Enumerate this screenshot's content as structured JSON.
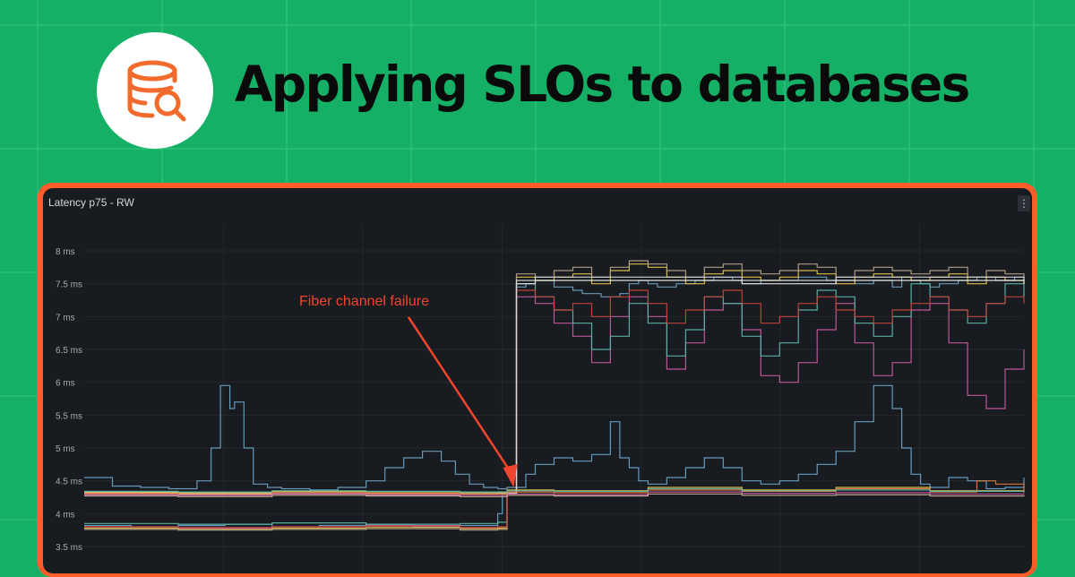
{
  "headline": "Applying SLOs to databases",
  "logo": {
    "icon": "database-search-icon",
    "color": "#f26b2c"
  },
  "colors": {
    "background": "#15b066",
    "frame": "#ff5d2a",
    "panel": "#181b1f",
    "annotation": "#f2452f"
  },
  "panel": {
    "title": "Latency p75 - RW",
    "menu_icon": "⋮"
  },
  "chart_data": {
    "type": "line",
    "title": "Latency p75 - RW",
    "ylabel": "",
    "unit": "ms",
    "ylim": [
      3.4,
      8.3
    ],
    "y_ticks": [
      "8 ms",
      "7.5 ms",
      "7 ms",
      "6.5 ms",
      "6 ms",
      "5.5 ms",
      "5 ms",
      "4.5 ms",
      "4 ms",
      "3.5 ms"
    ],
    "y_tick_values": [
      8,
      7.5,
      7,
      6.5,
      6,
      5.5,
      5,
      4.5,
      4,
      3.5
    ],
    "x_range": [
      0,
      100
    ],
    "line_style": "step",
    "grid": true,
    "legend": "none",
    "annotation": {
      "text": "Fiber channel failure",
      "x": 45.7,
      "y": 4.4
    },
    "series": [
      {
        "color": "#6d9fc0",
        "x": [
          0,
          3,
          6,
          9,
          12,
          13.5,
          14.5,
          15.5,
          16,
          17,
          18,
          19.5,
          21,
          24,
          27,
          30,
          32,
          34,
          36,
          38,
          39.5,
          41,
          42.5,
          44,
          45,
          46,
          47,
          48,
          50,
          52,
          53,
          55,
          57,
          58,
          59,
          60,
          61,
          63,
          65,
          67,
          69,
          70,
          72,
          74,
          76,
          79,
          82,
          84,
          86,
          87,
          88,
          89,
          90,
          91,
          93,
          95,
          97,
          99,
          100
        ],
        "y": [
          4.55,
          4.42,
          4.4,
          4.38,
          4.5,
          5.0,
          5.95,
          5.6,
          5.7,
          5.0,
          4.45,
          4.4,
          4.38,
          4.36,
          4.4,
          4.5,
          4.7,
          4.85,
          4.95,
          4.8,
          4.6,
          4.45,
          4.4,
          4.38,
          4.4,
          7.45,
          7.5,
          7.55,
          7.45,
          7.4,
          7.35,
          7.3,
          7.35,
          7.5,
          7.55,
          7.5,
          7.45,
          7.5,
          7.55,
          7.6,
          7.55,
          7.5,
          7.55,
          7.55,
          7.6,
          7.55,
          7.5,
          7.55,
          7.45,
          7.6,
          7.55,
          7.5,
          7.45,
          7.5,
          7.55,
          7.6,
          7.55,
          7.6,
          7.55
        ]
      },
      {
        "color": "#6aa1c6",
        "x": [
          0,
          5,
          10,
          15,
          20,
          25,
          30,
          35,
          40,
          44,
          44.5,
          45,
          46,
          47,
          48,
          50,
          52,
          54,
          56,
          57,
          58,
          59,
          60,
          62,
          64,
          66,
          68,
          70,
          72,
          74,
          76,
          78,
          80,
          82,
          84,
          86,
          87,
          88,
          89,
          90,
          92,
          94,
          96,
          98,
          100
        ],
        "y": [
          3.82,
          3.8,
          3.82,
          3.84,
          3.8,
          3.82,
          3.84,
          3.8,
          3.82,
          4.0,
          4.3,
          4.3,
          4.4,
          4.6,
          4.75,
          4.85,
          4.8,
          4.9,
          5.4,
          4.85,
          4.7,
          4.5,
          4.45,
          4.55,
          4.7,
          4.85,
          4.7,
          4.5,
          4.45,
          4.5,
          4.6,
          4.75,
          4.95,
          5.4,
          5.95,
          5.6,
          5.0,
          4.6,
          4.45,
          4.4,
          4.55,
          4.5,
          4.38,
          4.4,
          4.55
        ]
      },
      {
        "color": "#c85aa0",
        "x": [
          0,
          10,
          20,
          30,
          40,
          44,
          45,
          46,
          48,
          50,
          52,
          54,
          56,
          58,
          60,
          62,
          64,
          66,
          68,
          70,
          72,
          74,
          76,
          78,
          80,
          82,
          84,
          86,
          88,
          90,
          92,
          94,
          96,
          98,
          100
        ],
        "y": [
          3.8,
          3.78,
          3.8,
          3.82,
          3.78,
          3.8,
          4.3,
          7.3,
          7.2,
          6.9,
          6.7,
          6.3,
          7.0,
          7.3,
          7.0,
          6.2,
          6.6,
          7.1,
          7.2,
          6.8,
          6.1,
          6.0,
          6.3,
          6.8,
          7.2,
          6.6,
          6.1,
          6.3,
          7.1,
          7.2,
          6.6,
          5.8,
          5.6,
          6.2,
          6.5
        ]
      },
      {
        "color": "#5db5a8",
        "x": [
          0,
          10,
          20,
          30,
          40,
          44,
          45,
          46,
          48,
          50,
          52,
          54,
          56,
          58,
          60,
          62,
          64,
          66,
          68,
          70,
          72,
          74,
          76,
          78,
          80,
          82,
          84,
          86,
          88,
          90,
          92,
          94,
          96,
          98,
          100
        ],
        "y": [
          3.85,
          3.84,
          3.86,
          3.84,
          3.85,
          3.87,
          4.3,
          7.5,
          7.3,
          7.1,
          6.9,
          6.5,
          6.7,
          7.2,
          6.9,
          6.4,
          6.8,
          7.3,
          7.2,
          6.7,
          6.4,
          6.6,
          7.1,
          7.4,
          7.3,
          6.9,
          6.7,
          7.0,
          7.5,
          7.3,
          7.1,
          6.9,
          7.2,
          7.5,
          7.3
        ]
      },
      {
        "color": "#e3c24a",
        "x": [
          0,
          10,
          20,
          30,
          40,
          44,
          45,
          46,
          48,
          50,
          52,
          54,
          56,
          58,
          60,
          62,
          64,
          66,
          68,
          70,
          72,
          74,
          76,
          78,
          80,
          82,
          84,
          86,
          88,
          90,
          92,
          94,
          96,
          98,
          100
        ],
        "y": [
          3.78,
          3.76,
          3.78,
          3.79,
          3.77,
          3.78,
          4.3,
          7.6,
          7.55,
          7.6,
          7.65,
          7.5,
          7.7,
          7.8,
          7.75,
          7.6,
          7.5,
          7.65,
          7.7,
          7.6,
          7.55,
          7.6,
          7.7,
          7.65,
          7.5,
          7.6,
          7.65,
          7.6,
          7.55,
          7.6,
          7.65,
          7.5,
          7.6,
          7.55,
          7.5
        ]
      },
      {
        "color": "#b5a088",
        "x": [
          0,
          10,
          20,
          30,
          40,
          44,
          45,
          46,
          48,
          50,
          52,
          54,
          56,
          58,
          60,
          62,
          64,
          66,
          68,
          70,
          72,
          74,
          76,
          78,
          80,
          82,
          84,
          86,
          88,
          90,
          92,
          94,
          96,
          98,
          100
        ],
        "y": [
          3.76,
          3.75,
          3.76,
          3.77,
          3.75,
          3.76,
          4.3,
          7.65,
          7.6,
          7.7,
          7.75,
          7.6,
          7.75,
          7.85,
          7.8,
          7.7,
          7.6,
          7.75,
          7.8,
          7.7,
          7.65,
          7.7,
          7.8,
          7.75,
          7.6,
          7.7,
          7.75,
          7.7,
          7.65,
          7.7,
          7.75,
          7.6,
          7.7,
          7.65,
          7.6
        ]
      },
      {
        "color": "#c4453c",
        "x": [
          0,
          10,
          20,
          30,
          40,
          44,
          45,
          46,
          48,
          50,
          52,
          54,
          56,
          58,
          60,
          62,
          64,
          66,
          68,
          70,
          72,
          74,
          76,
          78,
          80,
          82,
          84,
          86,
          88,
          90,
          92,
          94,
          96,
          98,
          100
        ],
        "y": [
          3.8,
          3.79,
          3.8,
          3.81,
          3.79,
          3.8,
          4.3,
          7.4,
          7.3,
          7.1,
          7.2,
          7.0,
          7.3,
          7.4,
          7.2,
          6.9,
          7.1,
          7.3,
          7.4,
          7.2,
          6.9,
          7.0,
          7.2,
          7.3,
          7.1,
          7.0,
          6.9,
          7.1,
          7.2,
          7.3,
          7.1,
          7.0,
          7.2,
          7.3,
          7.2
        ]
      },
      {
        "color": "#e8e8e8",
        "x": [
          0,
          10,
          20,
          30,
          40,
          44,
          45,
          46,
          48,
          50,
          60,
          70,
          80,
          90,
          100
        ],
        "y": [
          4.32,
          4.31,
          4.32,
          4.31,
          4.32,
          4.33,
          4.33,
          7.5,
          7.55,
          7.55,
          7.55,
          7.5,
          7.55,
          7.55,
          7.5
        ]
      },
      {
        "color": "#d8d8d8",
        "x": [
          0,
          10,
          20,
          30,
          40,
          44,
          45,
          46,
          48,
          50,
          60,
          70,
          80,
          90,
          100
        ],
        "y": [
          4.3,
          4.29,
          4.3,
          4.29,
          4.3,
          4.31,
          4.31,
          7.55,
          7.6,
          7.6,
          7.6,
          7.55,
          7.6,
          7.6,
          7.55
        ]
      },
      {
        "color": "#e3c24a",
        "x": [
          0,
          10,
          20,
          30,
          40,
          45,
          50,
          60,
          70,
          80,
          90,
          100
        ],
        "y": [
          4.33,
          4.32,
          4.34,
          4.33,
          4.32,
          4.36,
          4.35,
          4.4,
          4.36,
          4.4,
          4.35,
          4.34
        ]
      },
      {
        "color": "#e07b3c",
        "x": [
          0,
          10,
          20,
          30,
          40,
          45,
          50,
          60,
          70,
          80,
          90,
          95,
          97,
          100
        ],
        "y": [
          4.31,
          4.3,
          4.32,
          4.31,
          4.3,
          4.33,
          4.32,
          4.36,
          4.34,
          4.38,
          4.33,
          4.5,
          4.45,
          4.32
        ]
      },
      {
        "color": "#c85aa0",
        "x": [
          0,
          10,
          20,
          30,
          40,
          45,
          50,
          60,
          70,
          80,
          90,
          100
        ],
        "y": [
          4.29,
          4.28,
          4.3,
          4.29,
          4.28,
          4.3,
          4.29,
          4.33,
          4.31,
          4.32,
          4.3,
          4.29
        ]
      },
      {
        "color": "#5db5a8",
        "x": [
          0,
          10,
          20,
          30,
          40,
          45,
          50,
          60,
          70,
          80,
          90,
          100
        ],
        "y": [
          4.34,
          4.33,
          4.35,
          4.34,
          4.33,
          4.35,
          4.34,
          4.38,
          4.35,
          4.36,
          4.34,
          4.33
        ]
      },
      {
        "color": "#d0b09a",
        "x": [
          0,
          10,
          20,
          30,
          40,
          45,
          50,
          60,
          70,
          80,
          90,
          100
        ],
        "y": [
          4.27,
          4.26,
          4.28,
          4.27,
          4.26,
          4.28,
          4.27,
          4.3,
          4.28,
          4.29,
          4.27,
          4.26
        ]
      }
    ]
  }
}
